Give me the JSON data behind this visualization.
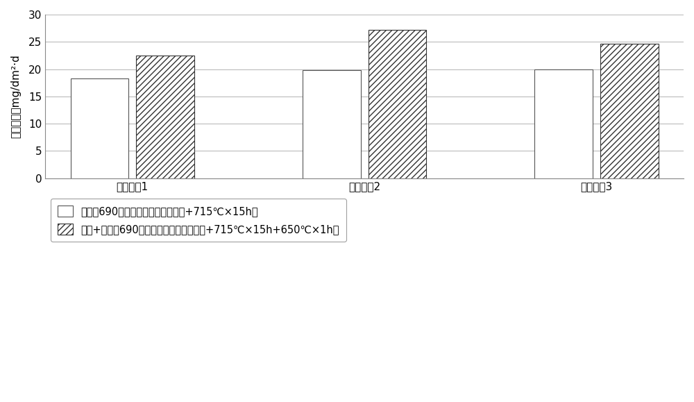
{
  "categories": [
    "平行试样1",
    "平行试样2",
    "平行试样3"
  ],
  "series1_values": [
    18.3,
    19.8,
    20.0
  ],
  "series2_values": [
    22.5,
    27.2,
    24.7
  ],
  "series1_label": "脱敏态690合金（热处理制度：固溶+715℃×15h）",
  "series2_label": "脱敏+敏化态690合金（热处理制度：固溶+715℃×15h+650℃×1h）",
  "ylabel": "腐蚀速率，mg/dm²·d",
  "ylim": [
    0,
    30
  ],
  "yticks": [
    0,
    5,
    10,
    15,
    20,
    25,
    30
  ],
  "bar_width": 0.3,
  "series1_facecolor": "#ffffff",
  "series1_edgecolor": "#555555",
  "series2_facecolor": "#ffffff",
  "series2_edgecolor": "#333333",
  "hatch_series2": "////",
  "background_color": "#ffffff",
  "grid_color": "#bbbbbb",
  "figure_width": 10.0,
  "figure_height": 5.79
}
